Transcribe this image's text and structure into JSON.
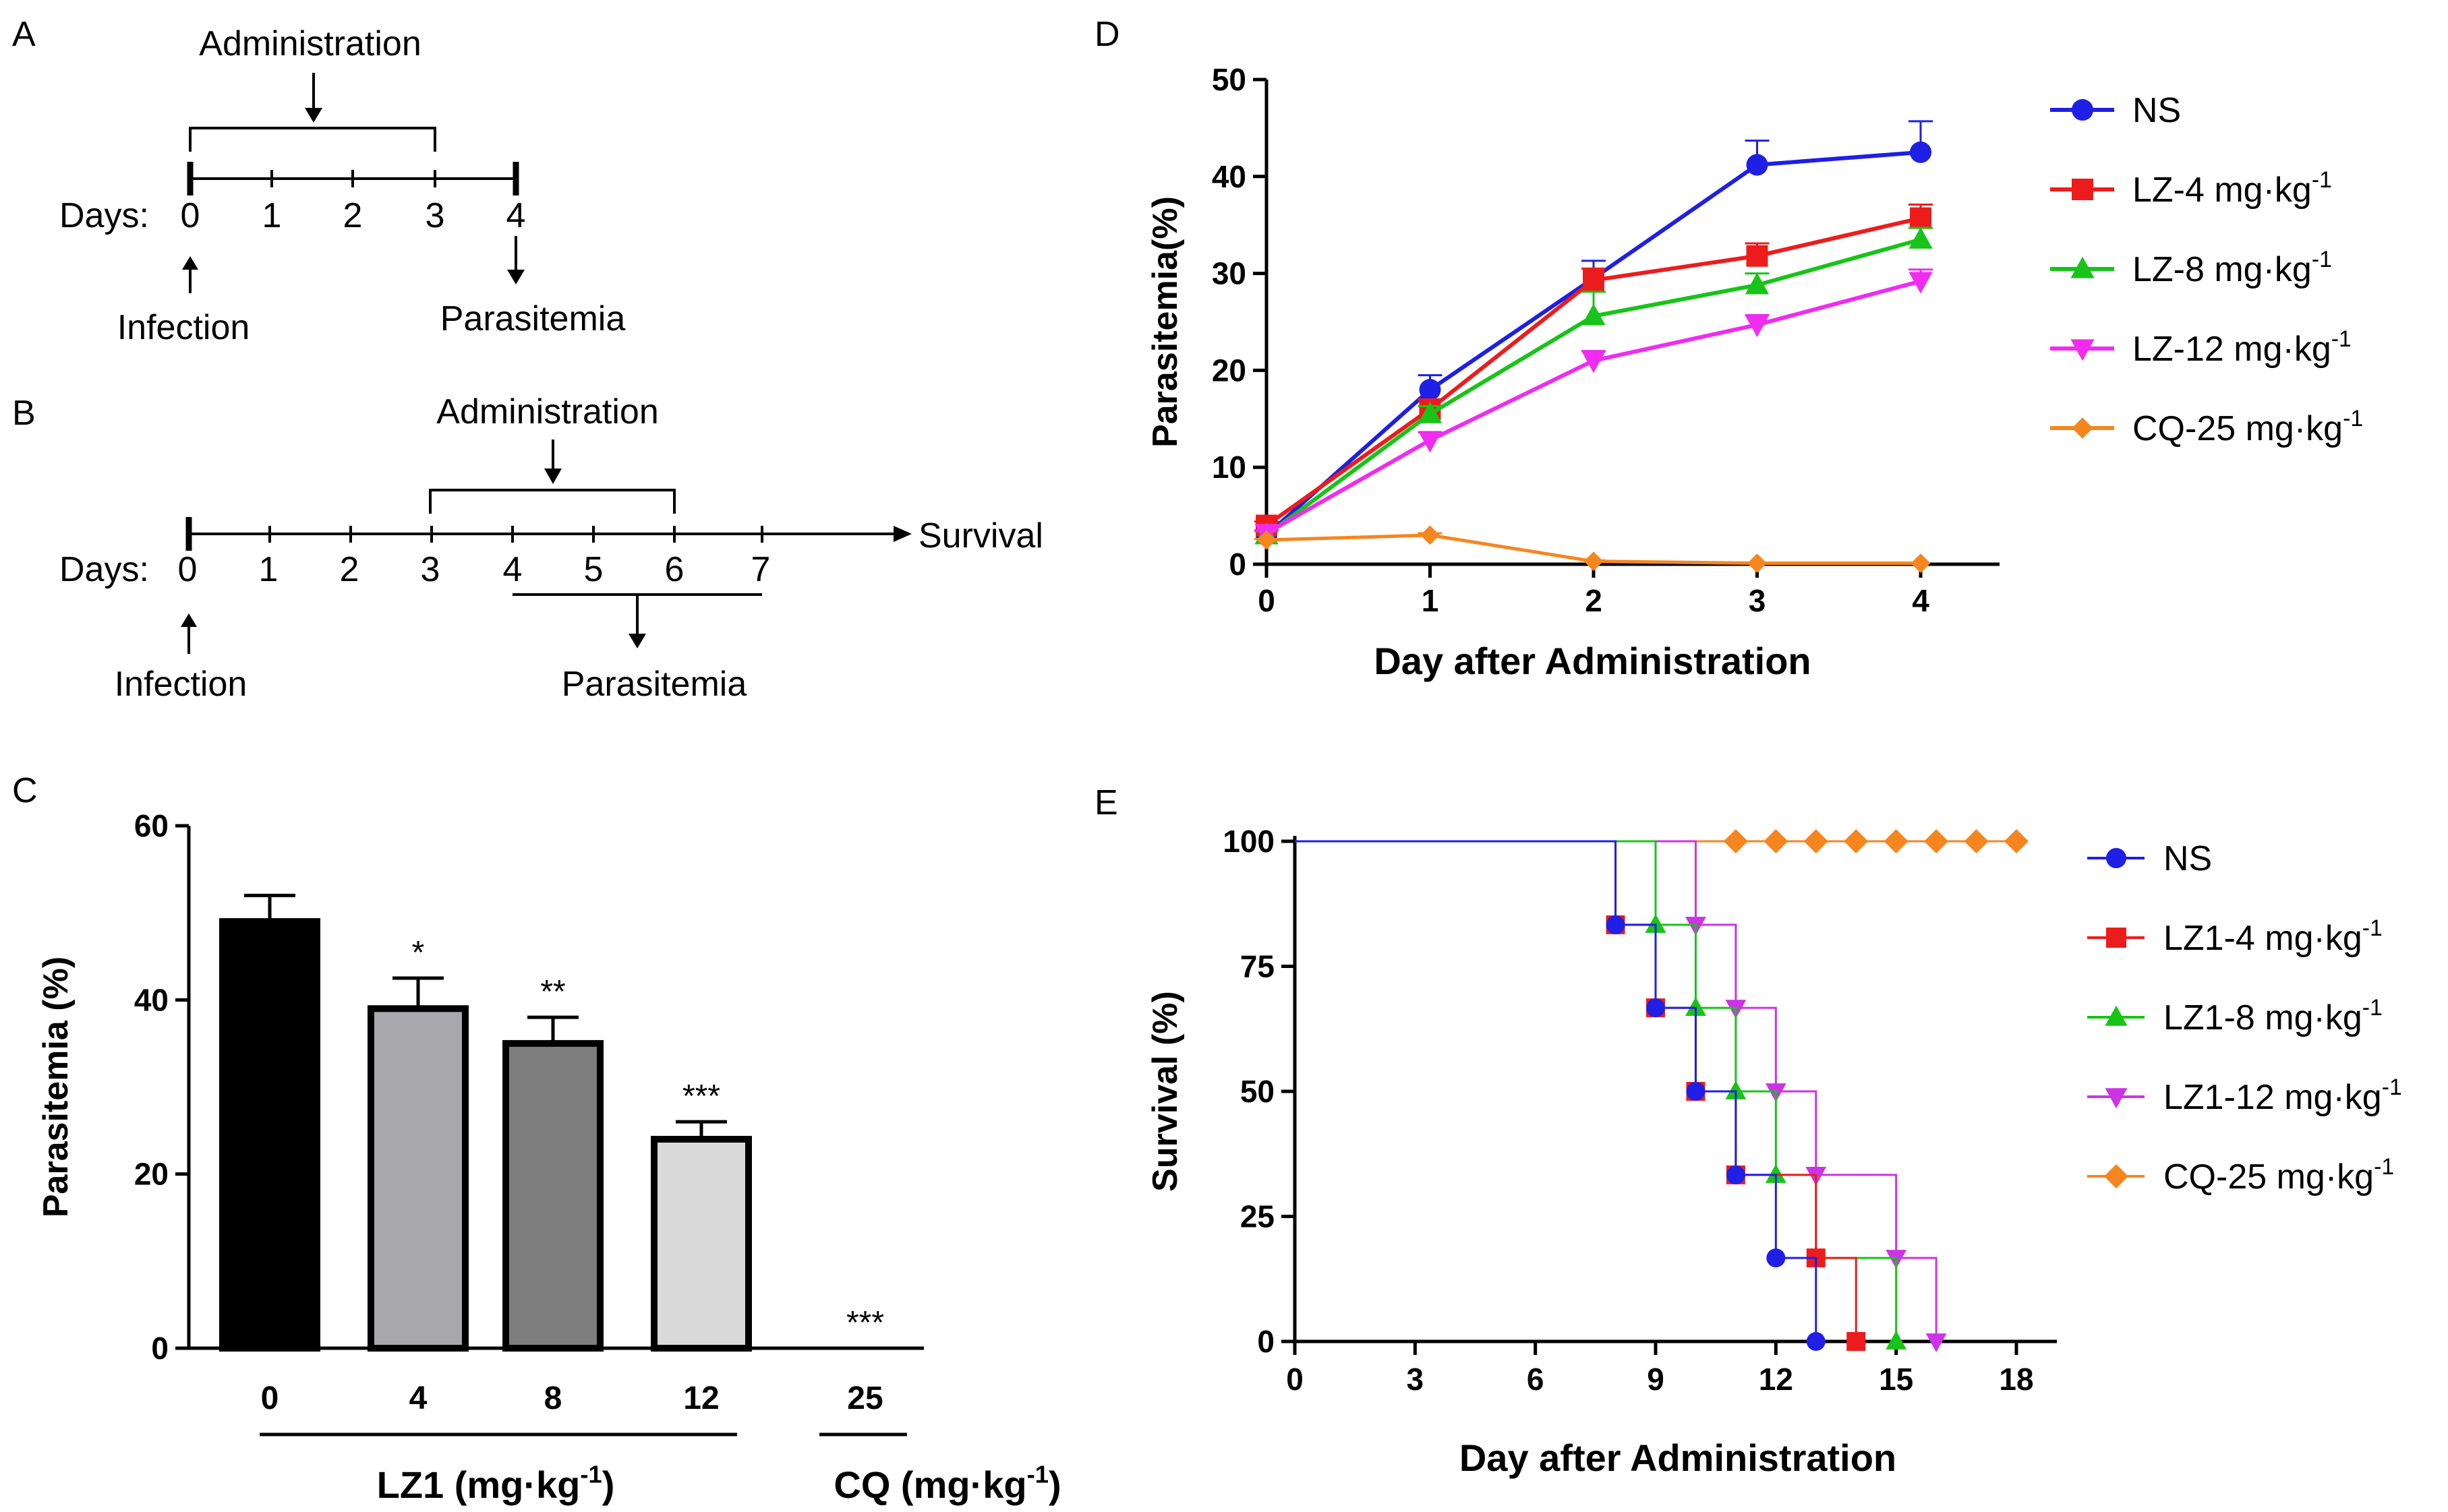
{
  "panels": {
    "a": {
      "letter": "A",
      "administration_label": "Administration",
      "days_label": "Days:",
      "days": [
        "0",
        "1",
        "2",
        "3",
        "4"
      ],
      "infection_label": "Infection",
      "parasitemia_label": "Parasitemia"
    },
    "b": {
      "letter": "B",
      "administration_label": "Administration",
      "days_label": "Days:",
      "days": [
        "0",
        "1",
        "2",
        "3",
        "4",
        "5",
        "6",
        "7"
      ],
      "survival_label": "Survival",
      "infection_label": "Infection",
      "parasitemia_label": "Parasitemia"
    },
    "c": {
      "letter": "C"
    },
    "d": {
      "letter": "D"
    },
    "e": {
      "letter": "E"
    }
  },
  "chart_data": [
    {
      "id": "C",
      "type": "bar",
      "ylabel": "Parasitemia (%)",
      "ylim": [
        0,
        60
      ],
      "yticks": [
        0,
        20,
        40,
        60
      ],
      "categories": [
        "0",
        "4",
        "8",
        "12",
        "25"
      ],
      "values": [
        49,
        39,
        35,
        24,
        0
      ],
      "errors": [
        3,
        3.5,
        3,
        2,
        0
      ],
      "significance": [
        "",
        "*",
        "**",
        "***",
        "***"
      ],
      "fill_colors": [
        "#000000",
        "#a8a8ac",
        "#7e7e7e",
        "#d9d9d9",
        "#ffffff"
      ],
      "groups": [
        {
          "label": "LZ1 (mg·kg",
          "sup": "-1",
          "close": ")",
          "from": 0,
          "to": 3
        },
        {
          "label": "CQ (mg·kg",
          "sup": "-1",
          "close": ")",
          "from": 4,
          "to": 4
        }
      ]
    },
    {
      "id": "D",
      "type": "line",
      "xlabel": "Day after Administration",
      "ylabel": "Parasitemia(%)",
      "x": [
        0,
        1,
        2,
        3,
        4
      ],
      "xticks": [
        0,
        1,
        2,
        3,
        4
      ],
      "ylim": [
        0,
        50
      ],
      "yticks": [
        0,
        10,
        20,
        30,
        40,
        50
      ],
      "series": [
        {
          "name": "NS",
          "unit": " ",
          "sup": "",
          "color": "#1f1fe6",
          "marker": "circle",
          "values": [
            3,
            18,
            29.5,
            41.2,
            42.5
          ],
          "errors": [
            0.5,
            1.5,
            1.8,
            2.5,
            3.2
          ]
        },
        {
          "name": "LZ-4",
          "unit": " mg·kg",
          "sup": "-1",
          "color": "#ed1c1c",
          "marker": "square",
          "values": [
            4,
            16,
            29.3,
            31.8,
            35.7
          ],
          "errors": [
            0.4,
            1.0,
            1.2,
            1.3,
            1.4
          ]
        },
        {
          "name": "LZ-8",
          "unit": " mg·kg",
          "sup": "-1",
          "color": "#17c417",
          "marker": "triangle-up",
          "values": [
            3,
            15.5,
            25.6,
            28.8,
            33.5
          ],
          "errors": [
            0.4,
            0.8,
            2.5,
            1.2,
            1.2
          ]
        },
        {
          "name": "LZ-12",
          "unit": " mg·kg",
          "sup": "-1",
          "color": "#ef2cef",
          "marker": "triangle-down",
          "values": [
            3.2,
            12.8,
            21,
            24.7,
            29.2
          ],
          "errors": [
            0.3,
            0.8,
            1.0,
            1.0,
            1.2
          ]
        },
        {
          "name": "CQ-25",
          "unit": " mg·kg",
          "sup": "-1",
          "color": "#f5861f",
          "marker": "diamond",
          "values": [
            2.5,
            3,
            0.3,
            0.1,
            0.1
          ],
          "errors": [
            0.1,
            0.2,
            0.1,
            0,
            0
          ]
        }
      ]
    },
    {
      "id": "E",
      "type": "line",
      "subtype": "survival-step",
      "xlabel": "Day after Administration",
      "ylabel": "Survival (%)",
      "xlim": [
        0,
        18
      ],
      "xticks": [
        0,
        3,
        6,
        9,
        12,
        15,
        18
      ],
      "ylim": [
        0,
        100
      ],
      "yticks": [
        0,
        25,
        50,
        75,
        100
      ],
      "series": [
        {
          "name": "NS",
          "unit": " ",
          "sup": "",
          "color": "#1f1fe6",
          "marker": "circle",
          "points": [
            [
              0,
              100
            ],
            [
              8,
              83.3
            ],
            [
              9,
              66.7
            ],
            [
              10,
              50
            ],
            [
              11,
              33.3
            ],
            [
              12,
              16.7
            ],
            [
              13,
              0
            ]
          ],
          "markers_at": [
            [
              8,
              83.3
            ],
            [
              9,
              66.7
            ],
            [
              10,
              50
            ],
            [
              11,
              33.3
            ],
            [
              12,
              16.7
            ],
            [
              13,
              0
            ]
          ]
        },
        {
          "name": "LZ1-4",
          "unit": " mg·kg",
          "sup": "-1",
          "color": "#ed1c1c",
          "marker": "square",
          "points": [
            [
              0,
              100
            ],
            [
              8,
              83.3
            ],
            [
              9,
              66.7
            ],
            [
              10,
              50
            ],
            [
              11,
              33.3
            ],
            [
              13,
              16.7
            ],
            [
              14,
              0
            ]
          ],
          "markers_at": [
            [
              8,
              83.3
            ],
            [
              9,
              66.7
            ],
            [
              10,
              50
            ],
            [
              11,
              33.3
            ],
            [
              13,
              16.7
            ],
            [
              14,
              0
            ]
          ]
        },
        {
          "name": "LZ1-8",
          "unit": " mg·kg",
          "sup": "-1",
          "color": "#17c417",
          "marker": "triangle-up",
          "points": [
            [
              0,
              100
            ],
            [
              9,
              83.3
            ],
            [
              10,
              66.7
            ],
            [
              11,
              50
            ],
            [
              12,
              33.3
            ],
            [
              13,
              16.7
            ],
            [
              15,
              0
            ]
          ],
          "markers_at": [
            [
              9,
              83.3
            ],
            [
              10,
              66.7
            ],
            [
              11,
              50
            ],
            [
              12,
              33.3
            ],
            [
              15,
              0
            ]
          ]
        },
        {
          "name": "LZ1-12",
          "unit": " mg·kg",
          "sup": "-1",
          "color": "#cc33e6",
          "marker": "triangle-down",
          "points": [
            [
              0,
              100
            ],
            [
              10,
              83.3
            ],
            [
              11,
              66.7
            ],
            [
              12,
              50
            ],
            [
              13,
              33.3
            ],
            [
              15,
              16.7
            ],
            [
              16,
              0
            ]
          ],
          "markers_at": [
            [
              10,
              83.3
            ],
            [
              11,
              66.7
            ],
            [
              12,
              50
            ],
            [
              13,
              33.3
            ],
            [
              15,
              16.7
            ],
            [
              16,
              0
            ]
          ]
        },
        {
          "name": "CQ-25",
          "unit": " mg·kg",
          "sup": "-1",
          "color": "#f5861f",
          "marker": "diamond",
          "points": [
            [
              0,
              100
            ],
            [
              18,
              100
            ]
          ],
          "markers_at": [
            [
              11,
              100
            ],
            [
              12,
              100
            ],
            [
              13,
              100
            ],
            [
              14,
              100
            ],
            [
              15,
              100
            ],
            [
              16,
              100
            ],
            [
              17,
              100
            ],
            [
              18,
              100
            ]
          ]
        }
      ]
    }
  ]
}
